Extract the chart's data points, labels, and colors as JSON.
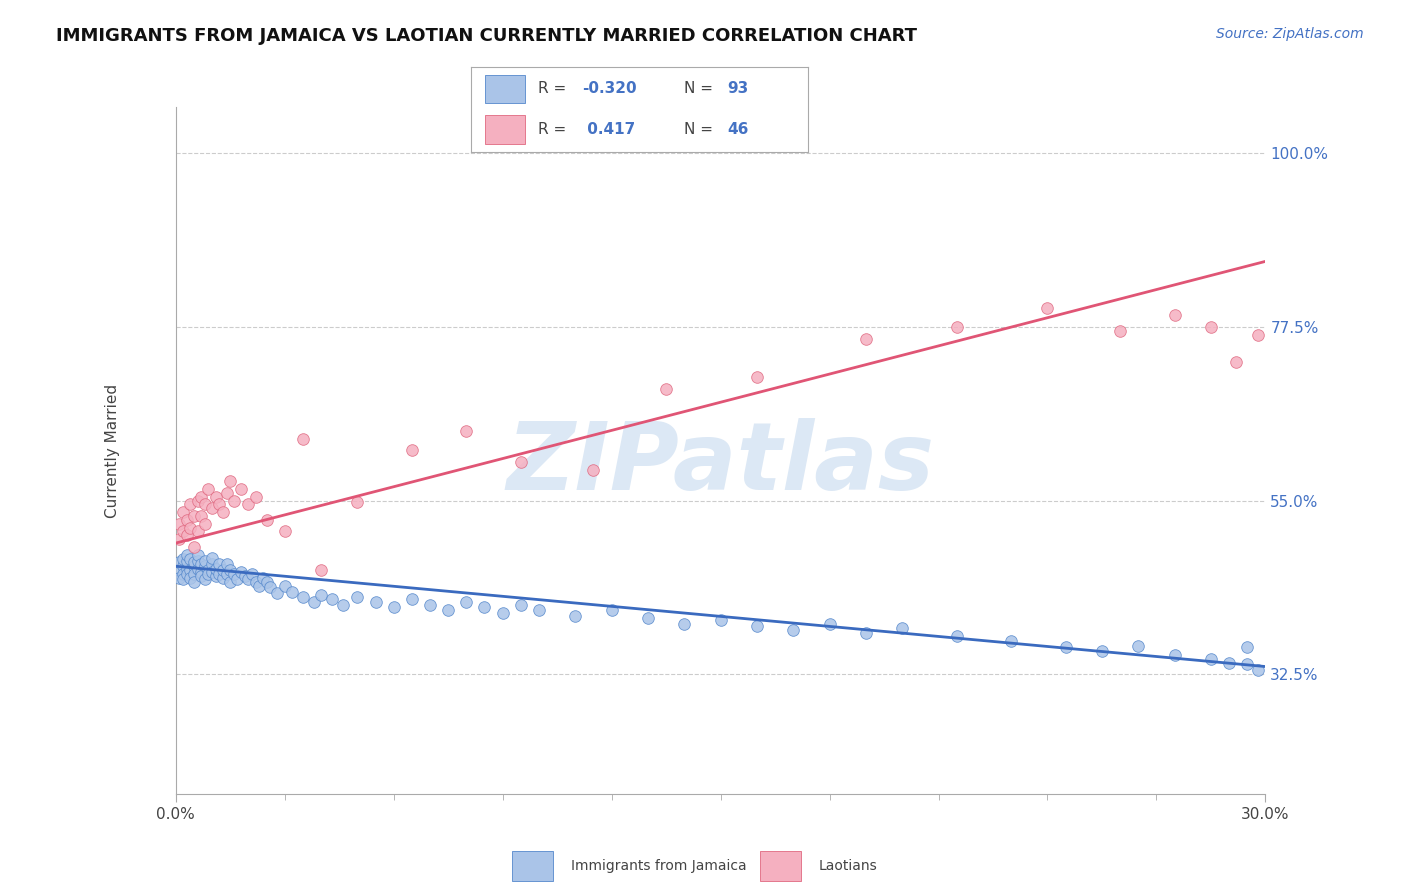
{
  "title": "IMMIGRANTS FROM JAMAICA VS LAOTIAN CURRENTLY MARRIED CORRELATION CHART",
  "source_text": "Source: ZipAtlas.com",
  "ylabel": "Currently Married",
  "xmin": 0.0,
  "xmax": 0.3,
  "ymin": 0.17,
  "ymax": 1.06,
  "yticks": [
    0.325,
    0.55,
    0.775,
    1.0
  ],
  "yticklabels": [
    "32.5%",
    "55.0%",
    "77.5%",
    "100.0%"
  ],
  "xtick_left": "0.0%",
  "xtick_right": "30.0%",
  "color_blue_fill": "#aac4e8",
  "color_blue_edge": "#5588cc",
  "color_blue_line": "#3a6abf",
  "color_pink_fill": "#f5b0c0",
  "color_pink_edge": "#e06880",
  "color_pink_line": "#e05575",
  "color_r_text": "#4472c4",
  "color_axis": "#aaaaaa",
  "color_grid": "#cccccc",
  "color_text": "#444444",
  "color_watermark": "#dce8f5",
  "watermark": "ZIPatlas",
  "title_fontsize": 13,
  "label_fontsize": 11,
  "tick_fontsize": 11,
  "source_fontsize": 10,
  "legend_fontsize": 11,
  "blue_x": [
    0.001,
    0.001,
    0.001,
    0.002,
    0.002,
    0.002,
    0.002,
    0.003,
    0.003,
    0.003,
    0.003,
    0.004,
    0.004,
    0.004,
    0.005,
    0.005,
    0.005,
    0.005,
    0.006,
    0.006,
    0.006,
    0.007,
    0.007,
    0.007,
    0.008,
    0.008,
    0.008,
    0.009,
    0.009,
    0.01,
    0.01,
    0.01,
    0.011,
    0.011,
    0.012,
    0.012,
    0.013,
    0.013,
    0.014,
    0.014,
    0.015,
    0.015,
    0.016,
    0.017,
    0.018,
    0.019,
    0.02,
    0.021,
    0.022,
    0.023,
    0.024,
    0.025,
    0.026,
    0.028,
    0.03,
    0.032,
    0.035,
    0.038,
    0.04,
    0.043,
    0.046,
    0.05,
    0.055,
    0.06,
    0.065,
    0.07,
    0.075,
    0.08,
    0.085,
    0.09,
    0.095,
    0.1,
    0.11,
    0.12,
    0.13,
    0.14,
    0.15,
    0.16,
    0.17,
    0.18,
    0.19,
    0.2,
    0.215,
    0.23,
    0.245,
    0.255,
    0.265,
    0.275,
    0.285,
    0.29,
    0.295,
    0.298,
    0.295
  ],
  "blue_y": [
    0.46,
    0.47,
    0.45,
    0.465,
    0.455,
    0.475,
    0.448,
    0.462,
    0.472,
    0.455,
    0.48,
    0.46,
    0.45,
    0.475,
    0.465,
    0.455,
    0.47,
    0.445,
    0.462,
    0.472,
    0.48,
    0.458,
    0.468,
    0.452,
    0.465,
    0.472,
    0.448,
    0.46,
    0.455,
    0.468,
    0.458,
    0.476,
    0.452,
    0.462,
    0.455,
    0.468,
    0.45,
    0.46,
    0.468,
    0.455,
    0.445,
    0.46,
    0.455,
    0.448,
    0.458,
    0.452,
    0.448,
    0.455,
    0.445,
    0.44,
    0.45,
    0.445,
    0.438,
    0.43,
    0.44,
    0.432,
    0.425,
    0.418,
    0.428,
    0.422,
    0.415,
    0.425,
    0.418,
    0.412,
    0.422,
    0.415,
    0.408,
    0.418,
    0.412,
    0.405,
    0.415,
    0.408,
    0.4,
    0.408,
    0.398,
    0.39,
    0.395,
    0.388,
    0.382,
    0.39,
    0.378,
    0.385,
    0.375,
    0.368,
    0.36,
    0.355,
    0.362,
    0.35,
    0.345,
    0.34,
    0.338,
    0.33,
    0.36
  ],
  "pink_x": [
    0.001,
    0.001,
    0.002,
    0.002,
    0.003,
    0.003,
    0.004,
    0.004,
    0.005,
    0.005,
    0.006,
    0.006,
    0.007,
    0.007,
    0.008,
    0.008,
    0.009,
    0.01,
    0.011,
    0.012,
    0.013,
    0.014,
    0.015,
    0.016,
    0.018,
    0.02,
    0.022,
    0.025,
    0.03,
    0.035,
    0.04,
    0.05,
    0.065,
    0.08,
    0.095,
    0.115,
    0.135,
    0.16,
    0.19,
    0.215,
    0.24,
    0.26,
    0.275,
    0.285,
    0.292,
    0.298
  ],
  "pink_y": [
    0.5,
    0.52,
    0.51,
    0.535,
    0.525,
    0.505,
    0.545,
    0.515,
    0.53,
    0.49,
    0.55,
    0.51,
    0.53,
    0.555,
    0.545,
    0.52,
    0.565,
    0.54,
    0.555,
    0.545,
    0.535,
    0.56,
    0.575,
    0.55,
    0.565,
    0.545,
    0.555,
    0.525,
    0.51,
    0.63,
    0.46,
    0.548,
    0.615,
    0.64,
    0.6,
    0.59,
    0.695,
    0.71,
    0.76,
    0.775,
    0.8,
    0.77,
    0.79,
    0.775,
    0.73,
    0.765
  ]
}
